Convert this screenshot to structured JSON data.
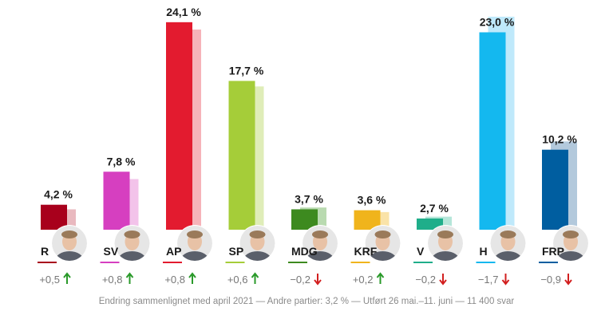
{
  "chart_data": {
    "type": "bar",
    "categories": [
      "R",
      "SV",
      "AP",
      "SP",
      "MDG",
      "KRF",
      "V",
      "H",
      "FRP"
    ],
    "series": [
      {
        "values": [
          4.2,
          7.8,
          24.1,
          17.7,
          3.7,
          3.6,
          2.7,
          23.0,
          10.2
        ]
      },
      {
        "values": [
          3.7,
          7.0,
          23.3,
          17.1,
          3.9,
          3.4,
          2.9,
          24.7,
          11.1
        ]
      }
    ],
    "value_labels": [
      "4,2 %",
      "7,8 %",
      "24,1 %",
      "17,7 %",
      "3,7 %",
      "3,6 %",
      "2,7 %",
      "23,0 %",
      "10,2 %"
    ],
    "changes": [
      "+0,5",
      "+0,8",
      "+0,8",
      "+0,6",
      "−0,2",
      "+0,2",
      "−0,2",
      "−1,7",
      "−0,9"
    ],
    "change_direction": [
      "up",
      "up",
      "up",
      "up",
      "down",
      "up",
      "down",
      "down",
      "down"
    ],
    "colors": [
      "#a8001c",
      "#d63fc0",
      "#e31b2f",
      "#a5cd39",
      "#3d8a1f",
      "#f0b41c",
      "#1fae8a",
      "#14b8ef",
      "#005ea0"
    ],
    "light_colors": [
      "#e9b9bf",
      "#f3c3ea",
      "#f6b3b9",
      "#dfedb8",
      "#b9dab0",
      "#fae3a8",
      "#b5e6d9",
      "#bfe9fb",
      "#b3c9dc"
    ],
    "change_colors": {
      "up": "#2a9a2a",
      "down": "#d21f1f"
    },
    "ylim": [
      0,
      25
    ],
    "grid": false,
    "legend": "none"
  },
  "footnote": "Endring sammenlignet med april 2021 — Andre partier: 3,2 % — Utført 26 mai.–11. juni — 11 400 svar"
}
